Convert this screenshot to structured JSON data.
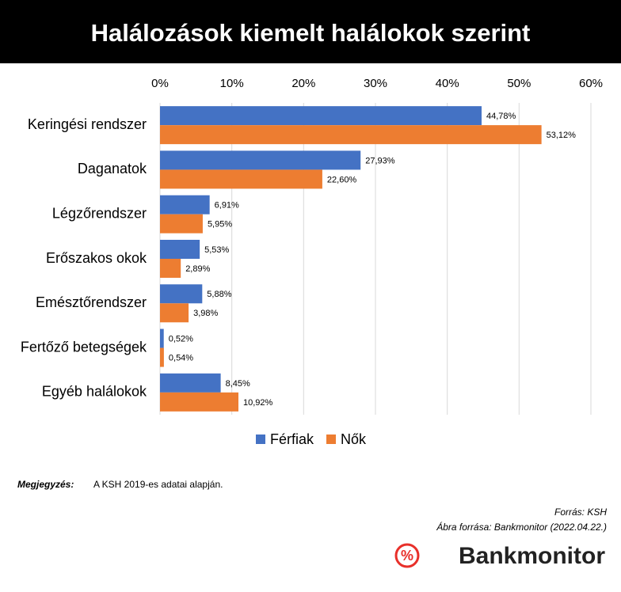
{
  "chart_data": {
    "type": "hbar",
    "title": "Halálozások kiemelt halálokok szerint",
    "categories": [
      "Keringési rendszer",
      "Daganatok",
      "Légzőrendszer",
      "Erőszakos okok",
      "Emésztőrendszer",
      "Fertőző betegségek",
      "Egyéb halálokok"
    ],
    "series": [
      {
        "name": "Férfiak",
        "color": "#4472c4",
        "values": [
          44.78,
          27.93,
          6.91,
          5.53,
          5.88,
          0.52,
          8.45
        ],
        "value_labels": [
          "44,78%",
          "27,93%",
          "6,91%",
          "5,53%",
          "5,88%",
          "0,52%",
          "8,45%"
        ]
      },
      {
        "name": "Nők",
        "color": "#ed7d31",
        "values": [
          53.12,
          22.6,
          5.95,
          2.89,
          3.98,
          0.54,
          10.92
        ],
        "value_labels": [
          "53,12%",
          "22,60%",
          "5,95%",
          "2,89%",
          "3,98%",
          "0,54%",
          "10,92%"
        ]
      }
    ],
    "xlim": [
      0,
      60
    ],
    "xticks": [
      {
        "value": 0,
        "label": "0%"
      },
      {
        "value": 10,
        "label": "10%"
      },
      {
        "value": 20,
        "label": "20%"
      },
      {
        "value": 30,
        "label": "30%"
      },
      {
        "value": 40,
        "label": "40%"
      },
      {
        "value": 50,
        "label": "50%"
      },
      {
        "value": 60,
        "label": "60%"
      }
    ],
    "grid": true,
    "legend": "bottom"
  },
  "footer": {
    "note_label": "Megjegyzés:",
    "note": "A KSH 2019-es adatai alapján.",
    "source": "Forrás: KSH",
    "chart_source": "Ábra forrása: Bankmonitor (2022.04.22.)",
    "logo_symbol": "%",
    "logo": "Bankmonitor"
  }
}
